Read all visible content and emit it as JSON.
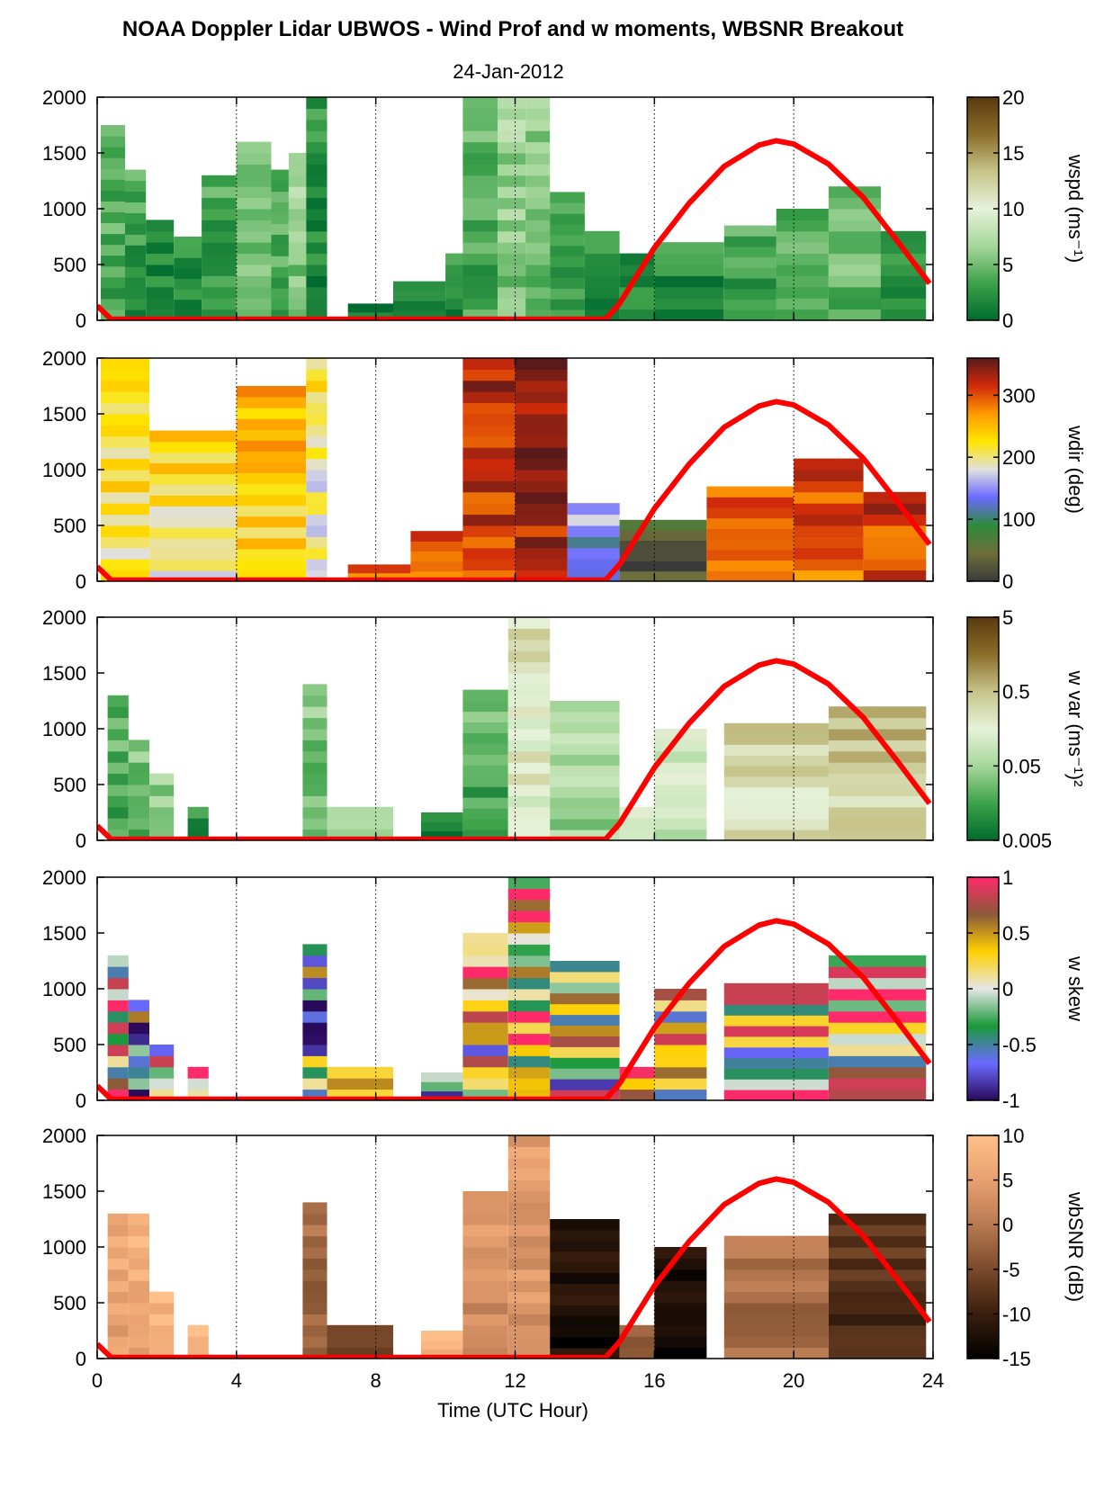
{
  "figure": {
    "title": "NOAA Doppler Lidar UBWOS - Wind Prof and w moments, WBSNR Breakout",
    "subtitle": "24-Jan-2012",
    "xlabel": "Time (UTC Hour)"
  },
  "chart_data": [
    {
      "type": "heatmap",
      "name": "wspd",
      "colorbar_label": "wspd (ms⁻¹)",
      "colorbar_ticks": [
        "0",
        "5",
        "10",
        "15",
        "20"
      ],
      "clim": [
        0,
        20
      ],
      "colors": [
        "#006b2e",
        "#3da24a",
        "#a6d79b",
        "#e6f2d8",
        "#c6c48a",
        "#8b6d2a",
        "#5a3a0e"
      ],
      "xlim": [
        0,
        24
      ],
      "ylim": [
        0,
        2000
      ],
      "x_ticks": [
        "0",
        "4",
        "8",
        "12",
        "16",
        "20",
        "24"
      ],
      "y_ticks": [
        "0",
        "500",
        "1000",
        "1500",
        "2000"
      ],
      "columns": [
        {
          "t0": 0.1,
          "t1": 0.8,
          "top": 1750,
          "v": 4
        },
        {
          "t0": 0.8,
          "t1": 1.4,
          "top": 1350,
          "v": 3
        },
        {
          "t0": 1.4,
          "t1": 2.2,
          "top": 900,
          "v": 2
        },
        {
          "t0": 2.2,
          "t1": 3.0,
          "top": 750,
          "v": 2
        },
        {
          "t0": 3.0,
          "t1": 4.0,
          "top": 1300,
          "v": 3
        },
        {
          "t0": 4.0,
          "t1": 5.0,
          "top": 1600,
          "v": 5
        },
        {
          "t0": 5.0,
          "t1": 5.5,
          "top": 1350,
          "v": 4
        },
        {
          "t0": 5.5,
          "t1": 6.0,
          "top": 1500,
          "v": 6
        },
        {
          "t0": 6.0,
          "t1": 6.6,
          "top": 2000,
          "v": 2
        },
        {
          "t0": 7.2,
          "t1": 8.5,
          "top": 150,
          "v": 1
        },
        {
          "t0": 8.5,
          "t1": 10.0,
          "top": 350,
          "v": 1
        },
        {
          "t0": 10.0,
          "t1": 10.5,
          "top": 600,
          "v": 2
        },
        {
          "t0": 10.5,
          "t1": 11.5,
          "top": 2000,
          "v": 4
        },
        {
          "t0": 11.5,
          "t1": 12.3,
          "top": 2000,
          "v": 6
        },
        {
          "t0": 12.3,
          "t1": 13.0,
          "top": 2000,
          "v": 5
        },
        {
          "t0": 13.0,
          "t1": 14.0,
          "top": 1150,
          "v": 3
        },
        {
          "t0": 14.0,
          "t1": 15.0,
          "top": 800,
          "v": 2
        },
        {
          "t0": 15.0,
          "t1": 16.0,
          "top": 600,
          "v": 2
        },
        {
          "t0": 16.0,
          "t1": 18.0,
          "top": 700,
          "v": 2
        },
        {
          "t0": 18.0,
          "t1": 19.5,
          "top": 850,
          "v": 3
        },
        {
          "t0": 19.5,
          "t1": 21.0,
          "top": 1000,
          "v": 4
        },
        {
          "t0": 21.0,
          "t1": 22.5,
          "top": 1200,
          "v": 5
        },
        {
          "t0": 22.5,
          "t1": 23.8,
          "top": 800,
          "v": 3
        }
      ],
      "sun_elevation": {
        "color": "#ff0000",
        "x": [
          0,
          0.4,
          14.6,
          15.0,
          16.0,
          17.0,
          18.0,
          19.0,
          19.5,
          20.0,
          21.0,
          22.0,
          23.0,
          23.9
        ],
        "y": [
          130,
          10,
          10,
          150,
          650,
          1050,
          1380,
          1570,
          1610,
          1580,
          1400,
          1100,
          700,
          330
        ]
      }
    },
    {
      "type": "heatmap",
      "name": "wdir",
      "colorbar_label": "wdir (deg)",
      "colorbar_ticks": [
        "0",
        "100",
        "200",
        "300"
      ],
      "clim": [
        0,
        360
      ],
      "colors": [
        "#3a3a3a",
        "#6e6e3a",
        "#2e8a3a",
        "#6a6aff",
        "#e0e0e0",
        "#ffe600",
        "#ff9a00",
        "#d02a0a",
        "#5a1a1a"
      ],
      "xlim": [
        0,
        24
      ],
      "ylim": [
        0,
        2000
      ],
      "x_ticks": [
        "0",
        "4",
        "8",
        "12",
        "16",
        "20",
        "24"
      ],
      "y_ticks": [
        "0",
        "500",
        "1000",
        "1500",
        "2000"
      ],
      "columns": [
        {
          "t0": 0.1,
          "t1": 1.5,
          "top": 2000,
          "v": 220
        },
        {
          "t0": 1.5,
          "t1": 4.0,
          "top": 1350,
          "v": 215
        },
        {
          "t0": 4.0,
          "t1": 6.0,
          "top": 1750,
          "v": 240
        },
        {
          "t0": 6.0,
          "t1": 6.6,
          "top": 2000,
          "v": 200
        },
        {
          "t0": 7.2,
          "t1": 9.0,
          "top": 150,
          "v": 290
        },
        {
          "t0": 9.0,
          "t1": 10.5,
          "top": 450,
          "v": 280
        },
        {
          "t0": 10.5,
          "t1": 12.0,
          "top": 2000,
          "v": 320
        },
        {
          "t0": 12.0,
          "t1": 13.5,
          "top": 2000,
          "v": 340
        },
        {
          "t0": 13.5,
          "t1": 15.0,
          "top": 700,
          "v": 140
        },
        {
          "t0": 15.0,
          "t1": 17.5,
          "top": 550,
          "v": 30
        },
        {
          "t0": 17.5,
          "t1": 20.0,
          "top": 850,
          "v": 280
        },
        {
          "t0": 20.0,
          "t1": 22.0,
          "top": 1100,
          "v": 300
        },
        {
          "t0": 22.0,
          "t1": 23.8,
          "top": 800,
          "v": 310
        }
      ],
      "sun_elevation": {
        "color": "#ff0000",
        "x": [
          0,
          0.4,
          14.6,
          15.0,
          16.0,
          17.0,
          18.0,
          19.0,
          19.5,
          20.0,
          21.0,
          22.0,
          23.0,
          23.9
        ],
        "y": [
          130,
          10,
          10,
          150,
          650,
          1050,
          1380,
          1570,
          1610,
          1580,
          1400,
          1100,
          700,
          330
        ]
      }
    },
    {
      "type": "heatmap",
      "name": "w var",
      "colorbar_label": "w var (ms⁻¹)²",
      "colorbar_ticks": [
        "0.005",
        "0.05",
        "0.5",
        "5"
      ],
      "clim": [
        0.005,
        5
      ],
      "colors": [
        "#006b2e",
        "#3da24a",
        "#a6d79b",
        "#e6f2d8",
        "#c6c48a",
        "#8b6d2a",
        "#5a3a0e"
      ],
      "xlim": [
        0,
        24
      ],
      "ylim": [
        0,
        2000
      ],
      "x_ticks": [
        "0",
        "4",
        "8",
        "12",
        "16",
        "20",
        "24"
      ],
      "y_ticks": [
        "0",
        "500",
        "1000",
        "1500",
        "2000"
      ],
      "columns": [
        {
          "t0": 0.3,
          "t1": 0.9,
          "top": 1300,
          "v": 0.02
        },
        {
          "t0": 0.9,
          "t1": 1.5,
          "top": 900,
          "v": 0.03
        },
        {
          "t0": 1.5,
          "t1": 2.2,
          "top": 600,
          "v": 0.04
        },
        {
          "t0": 2.6,
          "t1": 3.2,
          "top": 300,
          "v": 0.01
        },
        {
          "t0": 5.9,
          "t1": 6.6,
          "top": 1400,
          "v": 0.03
        },
        {
          "t0": 6.6,
          "t1": 8.5,
          "top": 300,
          "v": 0.05
        },
        {
          "t0": 9.3,
          "t1": 10.5,
          "top": 250,
          "v": 0.01
        },
        {
          "t0": 10.5,
          "t1": 11.8,
          "top": 1350,
          "v": 0.02
        },
        {
          "t0": 11.8,
          "t1": 13.0,
          "top": 2000,
          "v": 0.2
        },
        {
          "t0": 13.0,
          "t1": 15.0,
          "top": 1250,
          "v": 0.06
        },
        {
          "t0": 15.0,
          "t1": 16.0,
          "top": 300,
          "v": 0.1
        },
        {
          "t0": 16.0,
          "t1": 17.5,
          "top": 1000,
          "v": 0.1
        },
        {
          "t0": 18.0,
          "t1": 21.0,
          "top": 1050,
          "v": 0.3
        },
        {
          "t0": 21.0,
          "t1": 23.8,
          "top": 1200,
          "v": 0.4
        }
      ],
      "sun_elevation": {
        "color": "#ff0000",
        "x": [
          0,
          0.4,
          14.6,
          15.0,
          16.0,
          17.0,
          18.0,
          19.0,
          19.5,
          20.0,
          21.0,
          22.0,
          23.0,
          23.9
        ],
        "y": [
          130,
          10,
          10,
          150,
          650,
          1050,
          1380,
          1570,
          1610,
          1580,
          1400,
          1100,
          700,
          330
        ]
      }
    },
    {
      "type": "heatmap",
      "name": "w skew",
      "colorbar_label": "w skew",
      "colorbar_ticks": [
        "-1",
        "-0.5",
        "0",
        "0.5",
        "1"
      ],
      "clim": [
        -1,
        1
      ],
      "colors": [
        "#2a0a5a",
        "#6a6aff",
        "#1a9a3a",
        "#e6e6e6",
        "#ffd000",
        "#8a5a3a",
        "#ff2a6a"
      ],
      "xlim": [
        0,
        24
      ],
      "ylim": [
        0,
        2000
      ],
      "x_ticks": [
        "0",
        "4",
        "8",
        "12",
        "16",
        "20",
        "24"
      ],
      "y_ticks": [
        "0",
        "500",
        "1000",
        "1500",
        "2000"
      ],
      "columns": [
        {
          "t0": 0.3,
          "t1": 0.9,
          "top": 1300,
          "v": 0.3
        },
        {
          "t0": 0.9,
          "t1": 1.5,
          "top": 900,
          "v": -0.2
        },
        {
          "t0": 1.5,
          "t1": 2.2,
          "top": 500,
          "v": 0.1
        },
        {
          "t0": 2.6,
          "t1": 3.2,
          "top": 300,
          "v": 0.4
        },
        {
          "t0": 5.9,
          "t1": 6.6,
          "top": 1400,
          "v": -0.4
        },
        {
          "t0": 6.6,
          "t1": 8.5,
          "top": 300,
          "v": 0.1
        },
        {
          "t0": 9.3,
          "t1": 10.5,
          "top": 250,
          "v": -0.2
        },
        {
          "t0": 10.5,
          "t1": 11.8,
          "top": 1500,
          "v": 0.2
        },
        {
          "t0": 11.8,
          "t1": 13.0,
          "top": 2000,
          "v": 0.4
        },
        {
          "t0": 13.0,
          "t1": 15.0,
          "top": 1250,
          "v": 0.1
        },
        {
          "t0": 15.0,
          "t1": 16.0,
          "top": 300,
          "v": 0.2
        },
        {
          "t0": 16.0,
          "t1": 17.5,
          "top": 1000,
          "v": 0.1
        },
        {
          "t0": 18.0,
          "t1": 21.0,
          "top": 1050,
          "v": 0.2
        },
        {
          "t0": 21.0,
          "t1": 23.8,
          "top": 1300,
          "v": 0.3
        }
      ],
      "sun_elevation": {
        "color": "#ff0000",
        "x": [
          0,
          0.4,
          14.6,
          15.0,
          16.0,
          17.0,
          18.0,
          19.0,
          19.5,
          20.0,
          21.0,
          22.0,
          23.0,
          23.9
        ],
        "y": [
          130,
          10,
          10,
          150,
          650,
          1050,
          1380,
          1570,
          1610,
          1580,
          1400,
          1100,
          700,
          330
        ]
      }
    },
    {
      "type": "heatmap",
      "name": "wbSNR",
      "colorbar_label": "wbSNR (dB)",
      "colorbar_ticks": [
        "-15",
        "-10",
        "-5",
        "0",
        "5",
        "10"
      ],
      "clim": [
        -15,
        10
      ],
      "colors": [
        "#000000",
        "#3a1e0e",
        "#7a4a2a",
        "#b87a52",
        "#e8a070",
        "#ffc08a"
      ],
      "xlim": [
        0,
        24
      ],
      "ylim": [
        0,
        2000
      ],
      "x_ticks": [
        "0",
        "4",
        "8",
        "12",
        "16",
        "20",
        "24"
      ],
      "y_ticks": [
        "0",
        "500",
        "1000",
        "1500",
        "2000"
      ],
      "columns": [
        {
          "t0": 0.3,
          "t1": 0.9,
          "top": 1300,
          "v": 6
        },
        {
          "t0": 0.9,
          "t1": 1.5,
          "top": 1300,
          "v": 7
        },
        {
          "t0": 1.5,
          "t1": 2.2,
          "top": 600,
          "v": 8
        },
        {
          "t0": 2.6,
          "t1": 3.2,
          "top": 300,
          "v": 9
        },
        {
          "t0": 5.9,
          "t1": 6.6,
          "top": 1400,
          "v": -2
        },
        {
          "t0": 6.6,
          "t1": 8.5,
          "top": 300,
          "v": -6
        },
        {
          "t0": 9.3,
          "t1": 10.5,
          "top": 250,
          "v": 9
        },
        {
          "t0": 10.5,
          "t1": 11.8,
          "top": 1500,
          "v": 3
        },
        {
          "t0": 11.8,
          "t1": 13.0,
          "top": 2000,
          "v": 4
        },
        {
          "t0": 13.0,
          "t1": 15.0,
          "top": 1250,
          "v": -12
        },
        {
          "t0": 15.0,
          "t1": 16.0,
          "top": 300,
          "v": -4
        },
        {
          "t0": 16.0,
          "t1": 17.5,
          "top": 1000,
          "v": -13
        },
        {
          "t0": 18.0,
          "t1": 21.0,
          "top": 1100,
          "v": -1
        },
        {
          "t0": 21.0,
          "t1": 23.8,
          "top": 1300,
          "v": -8
        }
      ],
      "sun_elevation": {
        "color": "#ff0000",
        "x": [
          0,
          0.4,
          14.6,
          15.0,
          16.0,
          17.0,
          18.0,
          19.0,
          19.5,
          20.0,
          21.0,
          22.0,
          23.0,
          23.9
        ],
        "y": [
          130,
          10,
          10,
          150,
          650,
          1050,
          1380,
          1570,
          1610,
          1580,
          1400,
          1100,
          700,
          330
        ]
      }
    }
  ]
}
